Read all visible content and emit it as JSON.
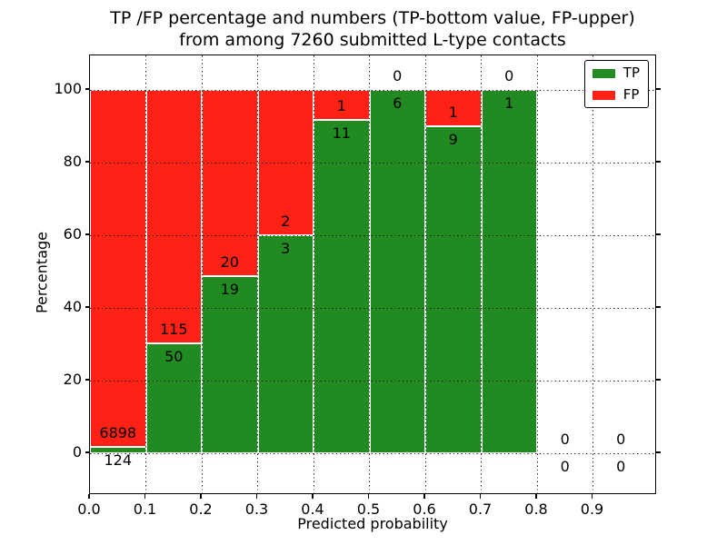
{
  "chart_data": {
    "type": "bar",
    "stacked": true,
    "title": [
      "TP /FP percentage and numbers (TP-bottom value, FP-upper)",
      "from among 7260 submitted L-type contacts"
    ],
    "xlabel": "Predicted probability",
    "ylabel": "Percentage",
    "x_ticks": [
      "0.0",
      "0.1",
      "0.2",
      "0.3",
      "0.4",
      "0.5",
      "0.6",
      "0.7",
      "0.8",
      "0.9"
    ],
    "x_tick_values": [
      0.0,
      0.1,
      0.2,
      0.3,
      0.4,
      0.5,
      0.6,
      0.7,
      0.8,
      0.9
    ],
    "y_ticks": [
      "0",
      "20",
      "40",
      "60",
      "80",
      "100"
    ],
    "y_tick_values": [
      0,
      20,
      40,
      60,
      80,
      100
    ],
    "xlim": [
      0.0,
      1.015
    ],
    "ylim": [
      -11.5,
      109.5
    ],
    "grid": "dotted",
    "grid_above_bars": true,
    "colors": {
      "tp": "#218a21",
      "fp": "#fe2116",
      "bar_edge": "#ffffff",
      "frame": "#000000",
      "text": "#000000",
      "background": "#ffffff"
    },
    "legend": {
      "position": "upper-right",
      "entries": [
        {
          "label": "TP",
          "color": "#218a21"
        },
        {
          "label": "FP",
          "color": "#fe2116"
        }
      ]
    },
    "bins": [
      {
        "range": [
          0.0,
          0.1
        ],
        "tp": 124,
        "fp": 6898
      },
      {
        "range": [
          0.1,
          0.2
        ],
        "tp": 50,
        "fp": 115
      },
      {
        "range": [
          0.2,
          0.3
        ],
        "tp": 19,
        "fp": 20
      },
      {
        "range": [
          0.3,
          0.4
        ],
        "tp": 3,
        "fp": 2
      },
      {
        "range": [
          0.4,
          0.5
        ],
        "tp": 11,
        "fp": 1
      },
      {
        "range": [
          0.5,
          0.6
        ],
        "tp": 6,
        "fp": 0
      },
      {
        "range": [
          0.6,
          0.7
        ],
        "tp": 9,
        "fp": 1
      },
      {
        "range": [
          0.7,
          0.8
        ],
        "tp": 1,
        "fp": 0
      },
      {
        "range": [
          0.8,
          0.9
        ],
        "tp": 0,
        "fp": 0
      },
      {
        "range": [
          0.9,
          1.0
        ],
        "tp": 0,
        "fp": 0
      }
    ]
  }
}
